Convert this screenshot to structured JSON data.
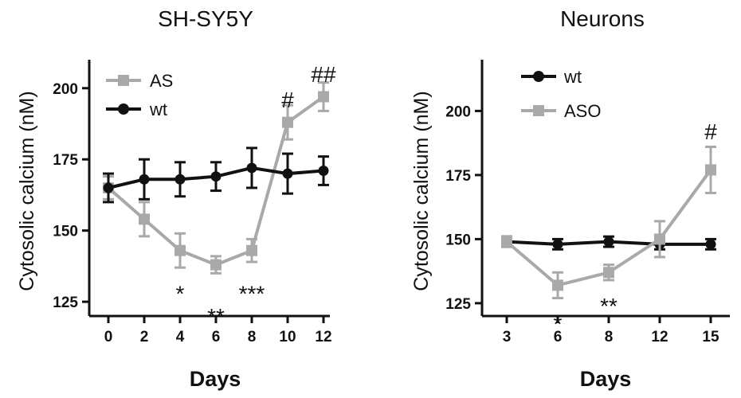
{
  "colors": {
    "dark": "#111111",
    "light": "#a9a9a9"
  },
  "chart_data": [
    {
      "type": "line",
      "title": "SH-SY5Y",
      "xlabel": "Days",
      "ylabel": "Cytosolic calcium (nM)",
      "x": [
        0,
        2,
        4,
        6,
        8,
        10,
        12
      ],
      "xticks": [
        "0",
        "2",
        "4",
        "6",
        "8",
        "10",
        "12"
      ],
      "xlim": [
        -0.6,
        12.6
      ],
      "yticks": [
        125,
        150,
        175,
        200
      ],
      "ylim": [
        120,
        210
      ],
      "legend_position": "top-left",
      "series": [
        {
          "name": "AS",
          "color": "#a9a9a9",
          "marker": "square",
          "values": [
            165,
            154,
            143,
            138,
            143,
            188,
            197
          ],
          "errors": [
            4,
            6,
            6,
            3,
            4,
            6,
            5
          ]
        },
        {
          "name": "wt",
          "color": "#111111",
          "marker": "circle",
          "values": [
            165,
            168,
            168,
            169,
            172,
            170,
            171
          ],
          "errors": [
            5,
            7,
            6,
            5,
            7,
            7,
            5
          ]
        }
      ],
      "annotations": [
        {
          "text": "*",
          "x": 4,
          "y": 128
        },
        {
          "text": "**",
          "x": 6,
          "y": 120
        },
        {
          "text": "***",
          "x": 8,
          "y": 128
        },
        {
          "text": "#",
          "x": 10,
          "y": 196
        },
        {
          "text": "##",
          "x": 12,
          "y": 205
        }
      ]
    },
    {
      "type": "line",
      "title": "Neurons",
      "xlabel": "Days",
      "ylabel": "Cytosolic calcium (nM)",
      "x": [
        3,
        6,
        8,
        12,
        15
      ],
      "xticks": [
        "3",
        "6",
        "8",
        "12",
        "15"
      ],
      "yticks": [
        125,
        150,
        175,
        200
      ],
      "ylim": [
        120,
        220
      ],
      "legend_position": "top-left",
      "series": [
        {
          "name": "wt",
          "color": "#111111",
          "marker": "circle",
          "values": [
            149,
            148,
            149,
            148,
            148
          ],
          "errors": [
            2,
            2,
            2,
            2,
            2
          ]
        },
        {
          "name": "ASO",
          "color": "#a9a9a9",
          "marker": "square",
          "values": [
            149,
            132,
            137,
            150,
            177
          ],
          "errors": [
            2,
            5,
            3,
            7,
            9
          ]
        }
      ],
      "annotations": [
        {
          "text": "*",
          "x": "6",
          "y": 117
        },
        {
          "text": "**",
          "x": "8",
          "y": 124
        },
        {
          "text": "#",
          "x": "15",
          "y": 192
        }
      ]
    }
  ]
}
